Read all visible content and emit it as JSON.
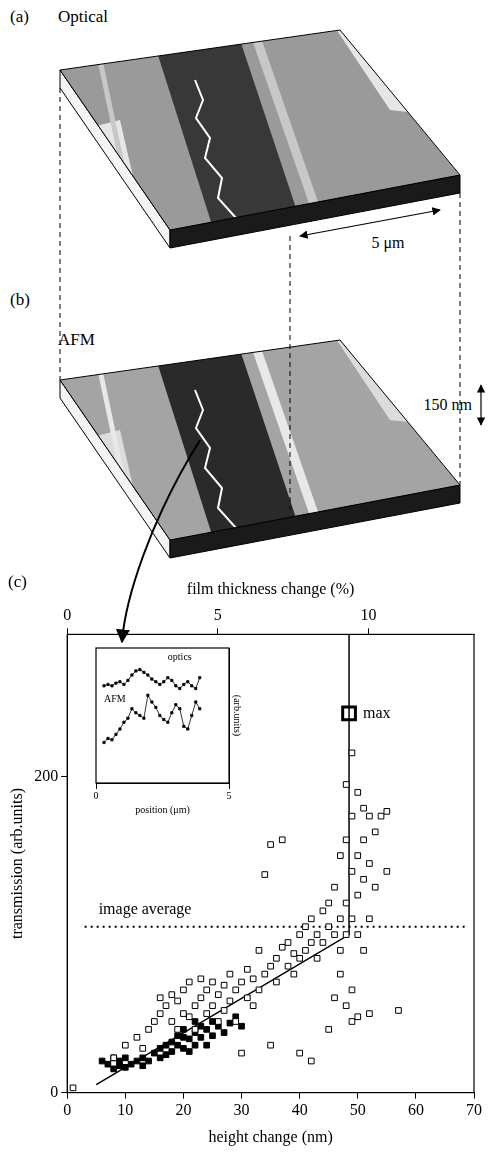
{
  "panels": [
    {
      "label": "(a)",
      "title": "Optical",
      "scale_label": "5 μm"
    },
    {
      "label": "(b)",
      "title": "AFM",
      "scale_label": "150 nm"
    }
  ],
  "chart_data": [
    {
      "type": "scatter",
      "panel_label": "(c)",
      "x_label": "height change (nm)",
      "y_label": "transmission (arb.units)",
      "x2_label": "film thickness change (%)",
      "xlim": [
        0,
        70
      ],
      "xticks": [
        0,
        10,
        20,
        30,
        40,
        50,
        60,
        70
      ],
      "ylim": [
        0,
        290
      ],
      "yticks": [
        0,
        200
      ],
      "x2lim": [
        0,
        13.5
      ],
      "x2ticks": [
        0,
        5,
        10
      ],
      "grid": false,
      "series": [
        {
          "marker": "open_square",
          "color": "#000000",
          "values": [
            [
              1,
              3
            ],
            [
              8,
              22
            ],
            [
              10,
              30
            ],
            [
              12,
              35
            ],
            [
              13,
              28
            ],
            [
              14,
              40
            ],
            [
              15,
              45
            ],
            [
              16,
              60
            ],
            [
              16,
              50
            ],
            [
              17,
              55
            ],
            [
              18,
              62
            ],
            [
              18,
              45
            ],
            [
              19,
              40
            ],
            [
              19,
              58
            ],
            [
              20,
              65
            ],
            [
              20,
              50
            ],
            [
              21,
              48
            ],
            [
              21,
              70
            ],
            [
              22,
              55
            ],
            [
              22,
              40
            ],
            [
              23,
              60
            ],
            [
              23,
              72
            ],
            [
              24,
              50
            ],
            [
              24,
              65
            ],
            [
              25,
              70
            ],
            [
              25,
              55
            ],
            [
              26,
              62
            ],
            [
              26,
              45
            ],
            [
              27,
              68
            ],
            [
              27,
              52
            ],
            [
              28,
              75
            ],
            [
              28,
              58
            ],
            [
              29,
              65
            ],
            [
              29,
              45
            ],
            [
              30,
              70
            ],
            [
              30,
              25
            ],
            [
              31,
              60
            ],
            [
              31,
              78
            ],
            [
              32,
              55
            ],
            [
              32,
              72
            ],
            [
              33,
              65
            ],
            [
              33,
              90
            ],
            [
              34,
              75
            ],
            [
              34,
              138
            ],
            [
              35,
              157
            ],
            [
              35,
              80
            ],
            [
              35,
              30
            ],
            [
              36,
              70
            ],
            [
              36,
              85
            ],
            [
              37,
              160
            ],
            [
              37,
              92
            ],
            [
              38,
              80
            ],
            [
              38,
              95
            ],
            [
              39,
              88
            ],
            [
              39,
              75
            ],
            [
              40,
              100
            ],
            [
              40,
              25
            ],
            [
              40,
              85
            ],
            [
              41,
              90
            ],
            [
              41,
              105
            ],
            [
              42,
              110
            ],
            [
              42,
              20
            ],
            [
              42,
              95
            ],
            [
              43,
              100
            ],
            [
              43,
              85
            ],
            [
              44,
              115
            ],
            [
              44,
              95
            ],
            [
              45,
              105
            ],
            [
              45,
              40
            ],
            [
              45,
              120
            ],
            [
              46,
              100
            ],
            [
              46,
              130
            ],
            [
              46,
              60
            ],
            [
              47,
              110
            ],
            [
              47,
              150
            ],
            [
              47,
              75
            ],
            [
              47,
              90
            ],
            [
              48,
              120
            ],
            [
              48,
              160
            ],
            [
              48,
              195
            ],
            [
              48,
              100
            ],
            [
              48,
              55
            ],
            [
              49,
              140
            ],
            [
              49,
              175
            ],
            [
              49,
              215
            ],
            [
              49,
              110
            ],
            [
              49,
              65
            ],
            [
              49,
              45
            ],
            [
              50,
              150
            ],
            [
              50,
              190
            ],
            [
              50,
              125
            ],
            [
              50,
              100
            ],
            [
              50,
              48
            ],
            [
              51,
              160
            ],
            [
              51,
              135
            ],
            [
              51,
              180
            ],
            [
              51,
              90
            ],
            [
              52,
              145
            ],
            [
              52,
              175
            ],
            [
              52,
              110
            ],
            [
              52,
              50
            ],
            [
              53,
              165
            ],
            [
              53,
              130
            ],
            [
              54,
              175
            ],
            [
              55,
              178
            ],
            [
              55,
              140
            ],
            [
              57,
              52
            ]
          ]
        },
        {
          "marker": "filled_square",
          "color": "#000000",
          "values": [
            [
              6,
              20
            ],
            [
              7,
              18
            ],
            [
              8,
              15
            ],
            [
              8,
              22
            ],
            [
              9,
              17
            ],
            [
              9,
              20
            ],
            [
              10,
              16
            ],
            [
              10,
              22
            ],
            [
              11,
              18
            ],
            [
              12,
              20
            ],
            [
              13,
              17
            ],
            [
              13,
              22
            ],
            [
              14,
              20
            ],
            [
              15,
              25
            ],
            [
              16,
              28
            ],
            [
              16,
              22
            ],
            [
              17,
              30
            ],
            [
              17,
              24
            ],
            [
              18,
              32
            ],
            [
              18,
              26
            ],
            [
              19,
              30
            ],
            [
              19,
              36
            ],
            [
              20,
              28
            ],
            [
              20,
              40
            ],
            [
              21,
              34
            ],
            [
              21,
              26
            ],
            [
              22,
              38
            ],
            [
              22,
              30
            ],
            [
              23,
              42
            ],
            [
              23,
              35
            ],
            [
              24,
              40
            ],
            [
              24,
              30
            ],
            [
              25,
              45
            ],
            [
              25,
              36
            ],
            [
              26,
              42
            ],
            [
              27,
              38
            ],
            [
              28,
              44
            ],
            [
              29,
              48
            ],
            [
              30,
              42
            ],
            [
              22,
              45
            ],
            [
              20,
              35
            ]
          ]
        },
        {
          "line_style": "solid",
          "marker": "none",
          "color": "#000000",
          "values": [
            [
              5,
              5
            ],
            [
              48.5,
              100
            ],
            [
              48.5,
              290
            ]
          ]
        },
        {
          "line_style": "dotted",
          "marker": "none",
          "color": "#000000",
          "values": [
            [
              3,
              105
            ],
            [
              69,
              105
            ]
          ]
        },
        {
          "marker": "large_open_square",
          "color": "#000000",
          "values": [
            [
              48.5,
              240
            ]
          ]
        }
      ],
      "annotations": [
        {
          "text": "max",
          "x": 48.5,
          "y": 240
        },
        {
          "text": "image average",
          "x": 3,
          "y": 116
        }
      ]
    },
    {
      "type": "line",
      "x_label": "position (μm)",
      "y_label": "(arb.units)",
      "xlim": [
        0,
        5
      ],
      "xticks": [
        0,
        5
      ],
      "ylim": [
        0,
        10
      ],
      "tick_labels": "x",
      "grid": false,
      "x": [
        0.3,
        0.45,
        0.6,
        0.75,
        0.9,
        1.05,
        1.2,
        1.35,
        1.5,
        1.65,
        1.8,
        1.95,
        2.1,
        2.25,
        2.4,
        2.55,
        2.7,
        2.85,
        3.0,
        3.15,
        3.3,
        3.45,
        3.6,
        3.75,
        3.9
      ],
      "series": [
        {
          "marker": "square",
          "line_style": "solid",
          "color": "#000000",
          "values": [
            7.2,
            7.3,
            7.2,
            7.4,
            7.5,
            7.3,
            7.6,
            8.0,
            8.3,
            8.4,
            8.2,
            8.0,
            7.7,
            7.5,
            7.3,
            7.5,
            7.8,
            7.6,
            7.2,
            7.0,
            7.3,
            7.5,
            7.2,
            7.0,
            7.8
          ]
        },
        {
          "marker": "square",
          "line_style": "solid",
          "color": "#000000",
          "values": [
            3.0,
            3.3,
            3.2,
            3.6,
            4.0,
            4.5,
            4.8,
            5.5,
            5.2,
            5.0,
            4.8,
            6.5,
            6.0,
            5.6,
            5.0,
            4.7,
            4.5,
            5.2,
            5.8,
            5.5,
            4.2,
            4.0,
            5.0,
            6.0,
            5.5
          ]
        }
      ],
      "annotations": [
        {
          "text": "optics",
          "x": 2.7,
          "y": 9.3
        },
        {
          "text": "AFM",
          "x": 0.3,
          "y": 6.2
        }
      ]
    }
  ]
}
